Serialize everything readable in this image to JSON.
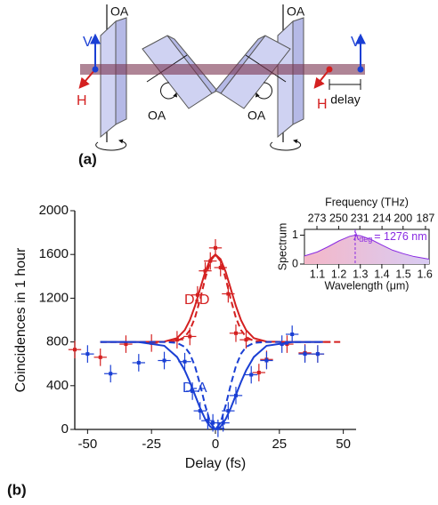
{
  "panel_labels": [
    "(a)",
    "(b)"
  ],
  "diagram": {
    "optic_axis_labels": [
      "OA",
      "OA",
      "OA",
      "OA"
    ],
    "v_labels": [
      "V",
      "V"
    ],
    "h_labels": [
      "H",
      "H"
    ],
    "delay_label": "delay"
  },
  "chart_data": [
    {
      "type": "scatter",
      "xlabel": "Delay (fs)",
      "ylabel": "Coincidences in 1 hour",
      "xlim": [
        -55,
        55
      ],
      "ylim": [
        0,
        2000
      ],
      "xticks": [
        -50,
        -25,
        0,
        25,
        50
      ],
      "yticks": [
        0,
        400,
        800,
        1200,
        1600,
        2000
      ],
      "series": [
        {
          "name": "D-D",
          "color": "#d42020",
          "style": "points",
          "xerr": 2.5,
          "yerr": 80,
          "x": [
            -55,
            -45,
            -35,
            -25,
            -15,
            -10,
            -7,
            -4,
            -2,
            0,
            2,
            5,
            8,
            12,
            17,
            20,
            28,
            35,
            40
          ],
          "values": [
            730,
            660,
            780,
            790,
            820,
            850,
            1230,
            1450,
            1540,
            1660,
            1480,
            1240,
            880,
            820,
            520,
            640,
            780,
            700,
            690
          ]
        },
        {
          "name": "D-A",
          "color": "#1a3fd4",
          "style": "points",
          "xerr": 2.5,
          "yerr": 80,
          "x": [
            -50,
            -41,
            -30,
            -20,
            -12,
            -9,
            -6,
            -3,
            -1,
            1,
            3,
            5,
            8,
            14,
            20,
            26,
            30,
            35,
            40
          ],
          "values": [
            690,
            510,
            610,
            630,
            620,
            350,
            170,
            80,
            60,
            10,
            60,
            170,
            310,
            500,
            630,
            780,
            870,
            690,
            690
          ]
        },
        {
          "color": "#d42020",
          "style": "solid",
          "x": [
            -45,
            -30,
            -20,
            -15,
            -12,
            -10,
            -8,
            -6,
            -4,
            -2,
            0,
            2,
            4,
            6,
            8,
            10,
            12,
            15,
            20,
            30,
            45
          ],
          "values": [
            800,
            800,
            803,
            835,
            908,
            999,
            1129,
            1285,
            1441,
            1557,
            1600,
            1557,
            1441,
            1285,
            1129,
            999,
            908,
            835,
            803,
            800,
            800
          ]
        },
        {
          "color": "#d42020",
          "style": "dashed",
          "x": [
            -45,
            -30,
            -20,
            -15,
            -12,
            -10,
            -8,
            -6,
            -4,
            -2,
            0,
            2,
            4,
            6,
            8,
            10,
            12,
            15,
            20,
            30,
            50
          ],
          "values": [
            800,
            800,
            800,
            809,
            845,
            908,
            1022,
            1189,
            1381,
            1538,
            1600,
            1538,
            1381,
            1189,
            1022,
            908,
            845,
            809,
            800,
            800,
            800
          ]
        },
        {
          "color": "#1a3fd4",
          "style": "solid",
          "x": [
            -45,
            -30,
            -20,
            -15,
            -12,
            -10,
            -8,
            -6,
            -4,
            -2,
            0,
            2,
            4,
            6,
            8,
            10,
            12,
            15,
            20,
            30,
            42
          ],
          "values": [
            800,
            799,
            765,
            662,
            540,
            434,
            315,
            196,
            94,
            25,
            0,
            25,
            94,
            196,
            315,
            434,
            540,
            662,
            765,
            799,
            800
          ]
        },
        {
          "color": "#1a3fd4",
          "style": "dashed",
          "x": [
            -45,
            -30,
            -20,
            -15,
            -12,
            -10,
            -8,
            -6,
            -4,
            -2,
            0,
            2,
            4,
            6,
            8,
            10,
            12,
            15,
            20,
            30,
            42
          ],
          "values": [
            800,
            800,
            800,
            791,
            755,
            692,
            578,
            410,
            219,
            62,
            0,
            62,
            219,
            410,
            578,
            692,
            755,
            791,
            800,
            800,
            800
          ]
        }
      ]
    },
    {
      "type": "line",
      "xlabel": "Wavelength (μm)",
      "ylabel": "Spectrum",
      "x2label": "Frequency (THz)",
      "xlim": [
        1.04,
        1.62
      ],
      "ylim": [
        0,
        1.2
      ],
      "xticks": [
        1.1,
        1.2,
        1.3,
        1.4,
        1.5,
        1.6
      ],
      "yticks": [
        0,
        1
      ],
      "x2ticks": [
        273,
        250,
        231,
        214,
        200,
        187
      ],
      "filled": true,
      "series": [
        {
          "color": "#8a2be2",
          "x": [
            1.04,
            1.1,
            1.15,
            1.2,
            1.25,
            1.276,
            1.3,
            1.35,
            1.4,
            1.45,
            1.5,
            1.55,
            1.62
          ],
          "values": [
            0.28,
            0.42,
            0.6,
            0.8,
            0.96,
            1,
            0.98,
            0.85,
            0.66,
            0.48,
            0.36,
            0.26,
            0.17
          ]
        }
      ],
      "annotations": [
        {
          "x": 1.276,
          "symbol": "λ",
          "subscript": "deg",
          "text": "= 1276 nm",
          "color": "#8a2be2"
        }
      ]
    }
  ]
}
